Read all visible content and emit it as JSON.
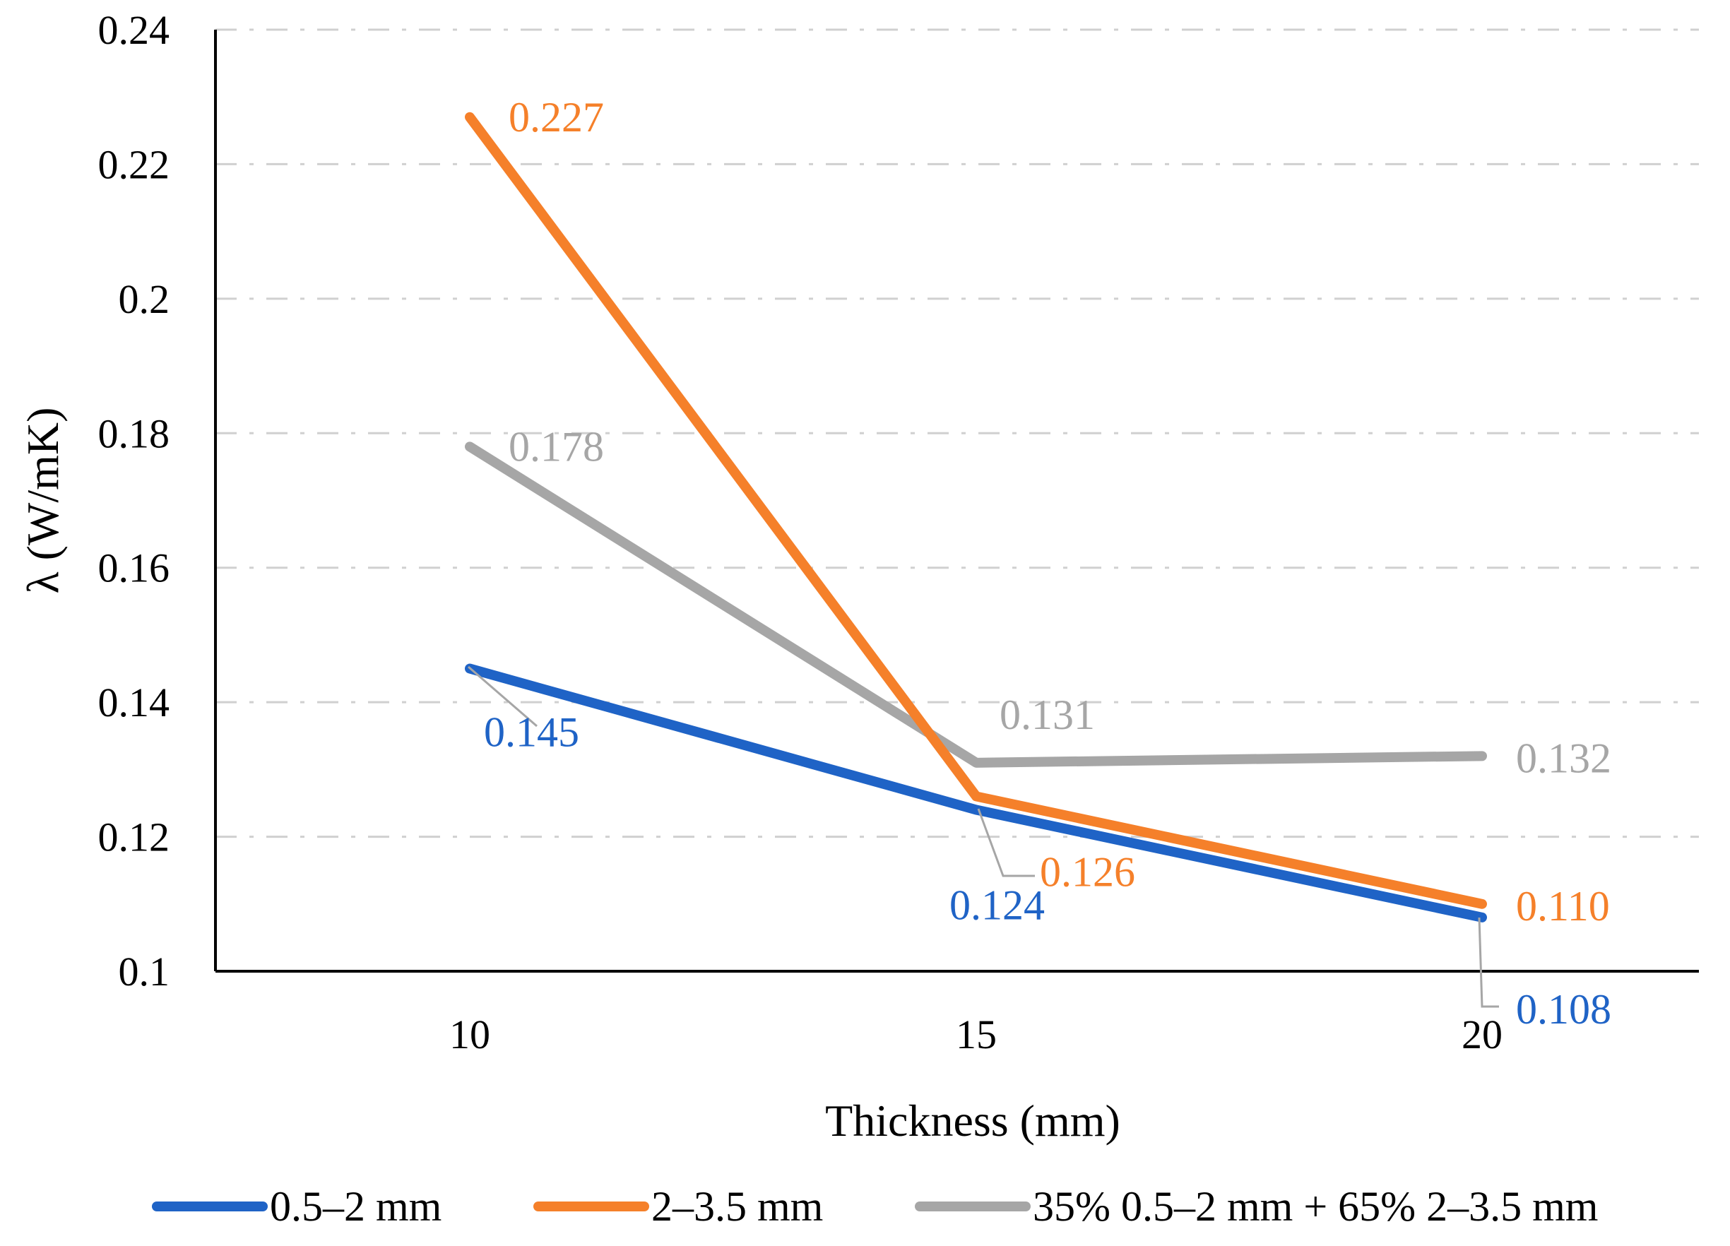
{
  "chart_data": {
    "type": "line",
    "title": "",
    "xlabel": "Thickness (mm)",
    "ylabel": "λ (W/mK)",
    "categories": [
      "10",
      "15",
      "20"
    ],
    "x": [
      10,
      15,
      20
    ],
    "ylim": [
      0.1,
      0.24
    ],
    "yticks": [
      0.1,
      0.12,
      0.14,
      0.16,
      0.18,
      0.2,
      0.22,
      0.24
    ],
    "ytick_labels": [
      "0.1",
      "0.12",
      "0.14",
      "0.16",
      "0.18",
      "0.2",
      "0.22",
      "0.24"
    ],
    "grid": "horizontal-dashed",
    "legend_position": "bottom",
    "series": [
      {
        "name": "0.5–2 mm",
        "color": "#1f63c6",
        "values": [
          0.145,
          0.124,
          0.108
        ],
        "labels": [
          "0.145",
          "0.124",
          "0.108"
        ]
      },
      {
        "name": "2–3.5 mm",
        "color": "#f5802a",
        "values": [
          0.227,
          0.126,
          0.11
        ],
        "labels": [
          "0.227",
          "0.126",
          "0.110"
        ]
      },
      {
        "name": "35% 0.5–2 mm + 65% 2–3.5 mm",
        "color": "#a6a6a6",
        "values": [
          0.178,
          0.131,
          0.132
        ],
        "labels": [
          "0.178",
          "0.131",
          "0.132"
        ]
      }
    ]
  }
}
